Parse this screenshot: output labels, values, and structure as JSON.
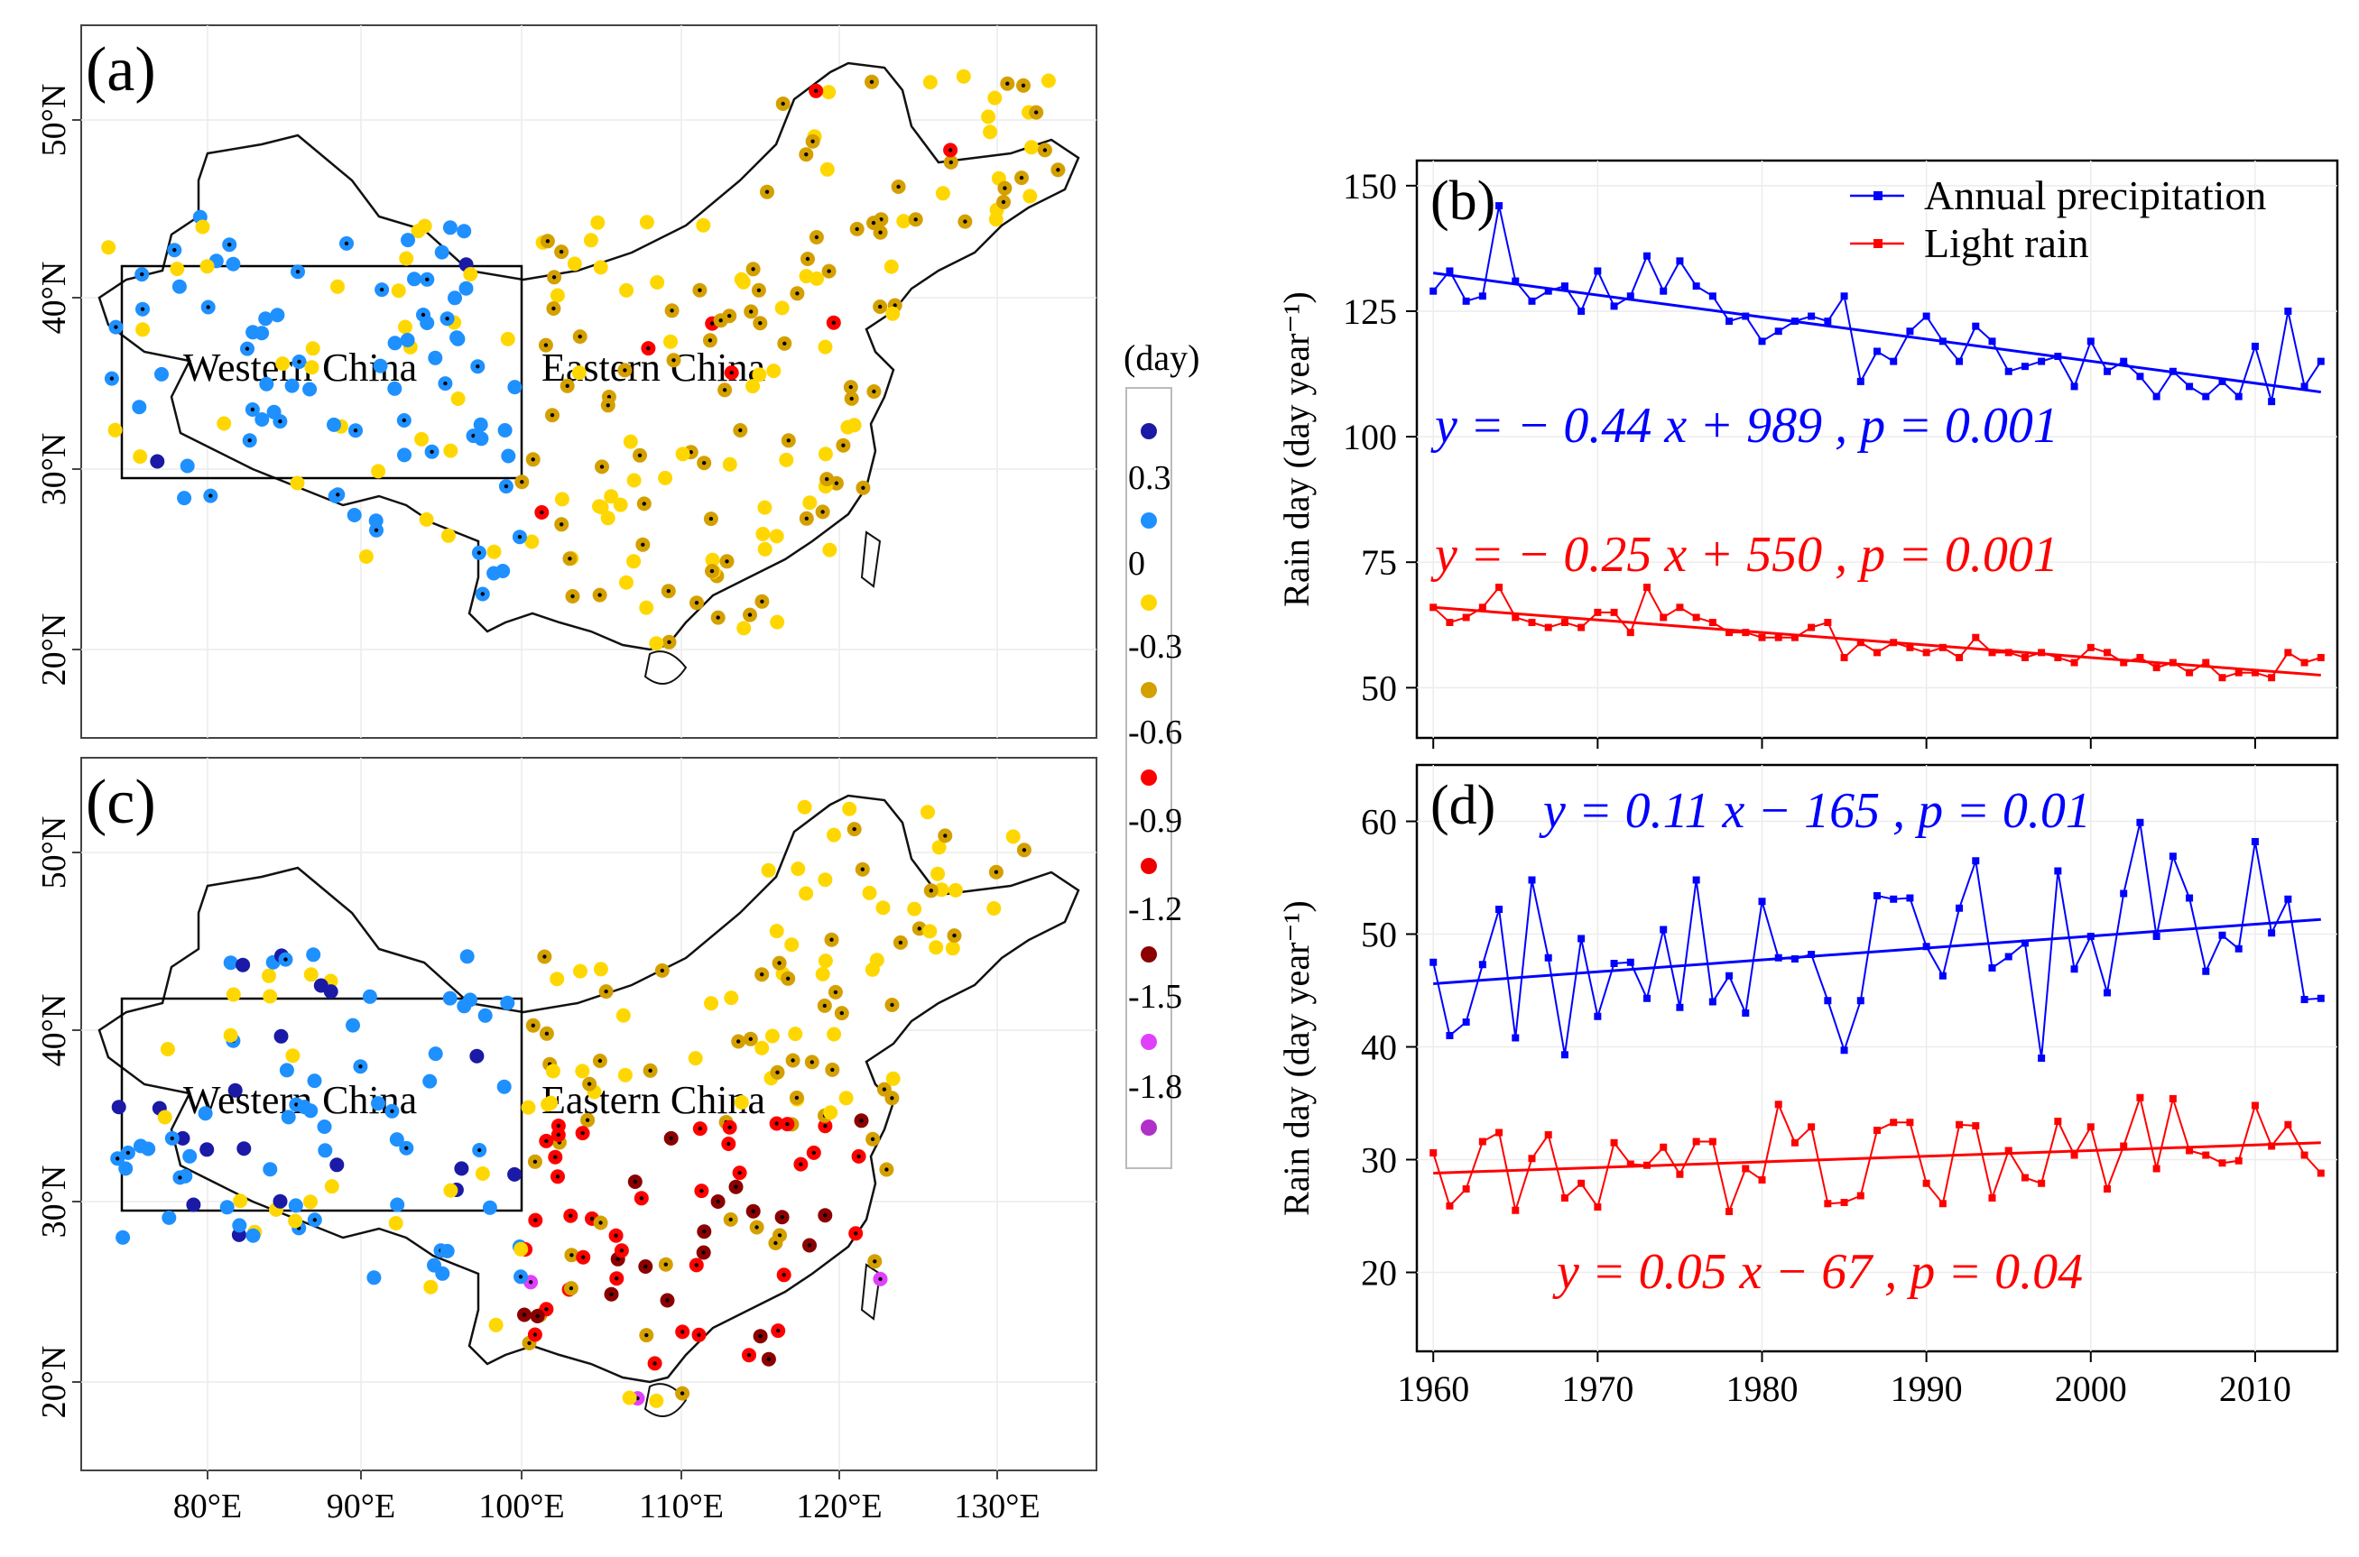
{
  "colors": {
    "annual": "#0000ff",
    "light": "#ff0000",
    "bins": [
      "#1a1aa6",
      "#1e90ff",
      "#ffd700",
      "#d4a000",
      "#ff0000",
      "#ee0000",
      "#8b0000",
      "#e040fb",
      "#b030c8"
    ]
  },
  "maps": [
    {
      "panel_label": "(a)",
      "region_labels": [
        "Western China",
        "Eastern China"
      ],
      "lat_ticks": [
        "20°N",
        "30°N",
        "40°N",
        "50°N"
      ],
      "lon_ticks": []
    },
    {
      "panel_label": "(c)",
      "region_labels": [
        "Western China",
        "Eastern China"
      ],
      "lat_ticks": [
        "20°N",
        "30°N",
        "40°N",
        "50°N"
      ],
      "lon_ticks": [
        "80°E",
        "90°E",
        "100°E",
        "110°E",
        "120°E",
        "130°E"
      ]
    }
  ],
  "legend": {
    "title": "(day)",
    "labels": [
      "0.3",
      "0",
      "-0.3",
      "-0.6",
      "-0.9",
      "-1.2",
      "-1.5",
      "-1.8"
    ]
  },
  "chart_data": [
    {
      "panel_label": "(b)",
      "type": "line",
      "ylabel": "Rain day (day year⁻¹)",
      "ylim": [
        40,
        155
      ],
      "yticks": [
        50,
        75,
        100,
        125,
        150
      ],
      "xlim": [
        1959,
        2015
      ],
      "xticks": [
        1960,
        1970,
        1980,
        1990,
        2000,
        2010
      ],
      "x": [
        1960,
        1961,
        1962,
        1963,
        1964,
        1965,
        1966,
        1967,
        1968,
        1969,
        1970,
        1971,
        1972,
        1973,
        1974,
        1975,
        1976,
        1977,
        1978,
        1979,
        1980,
        1981,
        1982,
        1983,
        1984,
        1985,
        1986,
        1987,
        1988,
        1989,
        1990,
        1991,
        1992,
        1993,
        1994,
        1995,
        1996,
        1997,
        1998,
        1999,
        2000,
        2001,
        2002,
        2003,
        2004,
        2005,
        2006,
        2007,
        2008,
        2009,
        2010,
        2011,
        2012,
        2013,
        2014
      ],
      "legend": [
        "Annual precipitation",
        "Light rain"
      ],
      "legend_position": "top-right",
      "series": [
        {
          "name": "Annual precipitation",
          "trend": [
            132.6,
            108.9
          ],
          "values": [
            129,
            133,
            127,
            128,
            146,
            131,
            127,
            129,
            130,
            125,
            133,
            126,
            128,
            136,
            129,
            135,
            130,
            128,
            123,
            124,
            119,
            121,
            123,
            124,
            123,
            128,
            111,
            117,
            115,
            121,
            124,
            119,
            115,
            122,
            119,
            113,
            114,
            115,
            116,
            110,
            119,
            113,
            115,
            112,
            108,
            113,
            110,
            108,
            111,
            108,
            118,
            107,
            125,
            110,
            115
          ]
        },
        {
          "name": "Light rain",
          "trend": [
            66.0,
            52.5
          ],
          "values": [
            66,
            63,
            64,
            66,
            70,
            64,
            63,
            62,
            63,
            62,
            65,
            65,
            61,
            70,
            64,
            66,
            64,
            63,
            61,
            61,
            60,
            60,
            60,
            62,
            63,
            56,
            59,
            57,
            59,
            58,
            57,
            58,
            56,
            60,
            57,
            57,
            56,
            57,
            56,
            55,
            58,
            57,
            55,
            56,
            54,
            55,
            53,
            55,
            52,
            53,
            53,
            52,
            57,
            55,
            56
          ]
        }
      ],
      "equations": [
        {
          "text": "y = − 0.44 x + 989 , p = 0.001",
          "color": "#0000ff"
        },
        {
          "text": "y = − 0.25 x + 550 , p = 0.001",
          "color": "#ff0000"
        }
      ]
    },
    {
      "panel_label": "(d)",
      "type": "line",
      "ylabel": "Rain day (day year⁻¹)",
      "ylim": [
        13,
        65
      ],
      "yticks": [
        20,
        30,
        40,
        50,
        60
      ],
      "xlim": [
        1959,
        2015
      ],
      "xticks": [
        1960,
        1970,
        1980,
        1990,
        2000,
        2010
      ],
      "x": [
        1960,
        1961,
        1962,
        1963,
        1964,
        1965,
        1966,
        1967,
        1968,
        1969,
        1970,
        1971,
        1972,
        1973,
        1974,
        1975,
        1976,
        1977,
        1978,
        1979,
        1980,
        1981,
        1982,
        1983,
        1984,
        1985,
        1986,
        1987,
        1988,
        1989,
        1990,
        1991,
        1992,
        1993,
        1994,
        1995,
        1996,
        1997,
        1998,
        1999,
        2000,
        2001,
        2002,
        2003,
        2004,
        2005,
        2006,
        2007,
        2008,
        2009,
        2010,
        2011,
        2012,
        2013,
        2014
      ],
      "series": [
        {
          "name": "Annual precipitation",
          "trend": [
            45.6,
            51.3
          ],
          "values": [
            47.5,
            41,
            42.2,
            47.3,
            52.2,
            40.8,
            54.8,
            47.9,
            39.3,
            49.6,
            42.7,
            47.4,
            47.5,
            44.3,
            50.4,
            43.5,
            54.8,
            44,
            46.3,
            43,
            52.9,
            47.9,
            47.8,
            48.2,
            44.1,
            39.7,
            44.1,
            53.4,
            53.1,
            53.2,
            48.9,
            46.3,
            52.3,
            56.5,
            47,
            48,
            49.2,
            39,
            55.6,
            46.9,
            49.8,
            44.8,
            53.6,
            59.9,
            49.8,
            56.9,
            53.2,
            46.7,
            49.9,
            48.7,
            58.2,
            50.1,
            53.1,
            44.2,
            44.3
          ]
        },
        {
          "name": "Light rain",
          "trend": [
            28.8,
            31.5
          ],
          "values": [
            30.6,
            25.9,
            27.4,
            31.6,
            32.4,
            25.5,
            30.1,
            32.2,
            26.6,
            27.9,
            25.8,
            31.5,
            29.6,
            29.5,
            31.1,
            28.7,
            31.6,
            31.6,
            25.4,
            29.2,
            28.2,
            34.9,
            31.5,
            32.9,
            26.1,
            26.2,
            26.8,
            32.6,
            33.3,
            33.3,
            27.9,
            26.1,
            33.1,
            33,
            26.6,
            30.8,
            28.4,
            27.9,
            33.4,
            30.4,
            32.9,
            27.4,
            31.2,
            35.5,
            29.2,
            35.4,
            30.8,
            30.4,
            29.7,
            29.9,
            34.8,
            31.2,
            33.1,
            30.4,
            28.8
          ]
        }
      ],
      "equations": [
        {
          "text": "y = 0.11 x − 165 , p = 0.01",
          "color": "#0000ff"
        },
        {
          "text": "y = 0.05 x − 67 , p = 0.04",
          "color": "#ff0000"
        }
      ]
    }
  ]
}
